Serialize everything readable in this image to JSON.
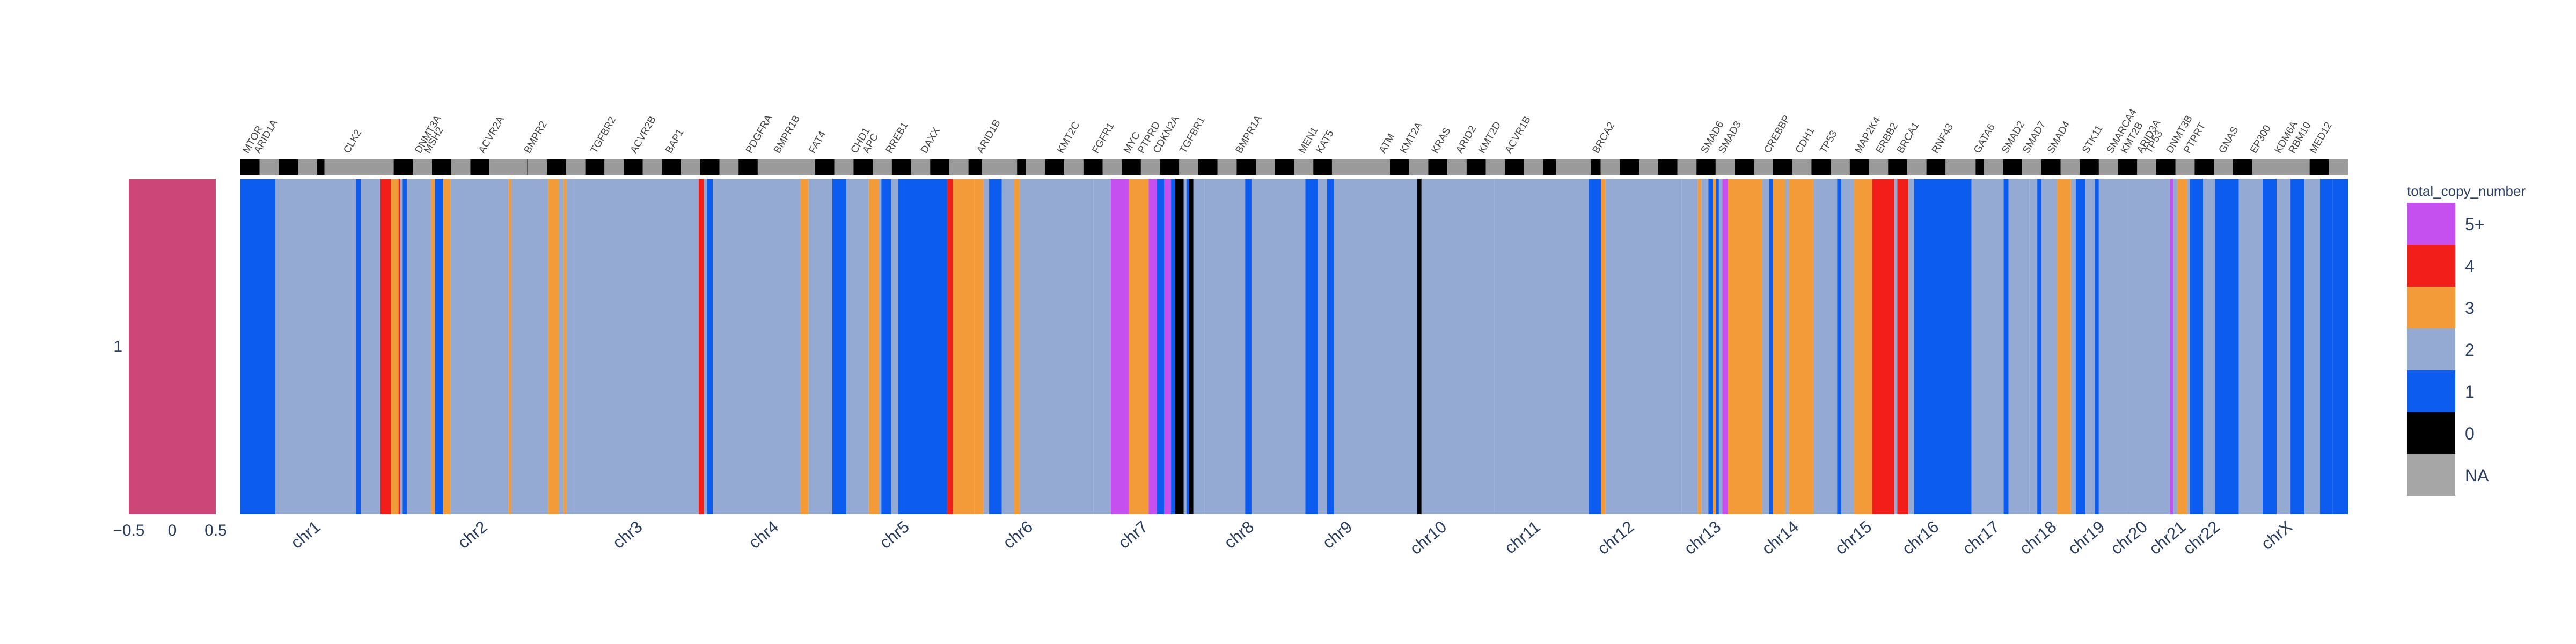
{
  "chart_data": [
    {
      "type": "heatmap",
      "name": "purity-panel",
      "x": [
        0
      ],
      "y": [
        "1"
      ],
      "color": "#cc4778",
      "xlim": [
        -0.5,
        0.5
      ],
      "x_ticks": [
        "−0.5",
        "0",
        "0.5"
      ],
      "y_ticks": [
        "1"
      ]
    },
    {
      "type": "heatmap",
      "name": "copy-number-panel",
      "y_ticks": [
        "1"
      ],
      "chromosomes": [
        {
          "label": "chr1",
          "start": 0,
          "end": 232
        },
        {
          "label": "chr2",
          "start": 232,
          "end": 477
        },
        {
          "label": "chr3",
          "start": 477,
          "end": 675
        },
        {
          "label": "chr4",
          "start": 675,
          "end": 866
        },
        {
          "label": "chr5",
          "start": 866,
          "end": 1049
        },
        {
          "label": "chr6",
          "start": 1049,
          "end": 1219
        },
        {
          "label": "chr7",
          "start": 1219,
          "end": 1378
        },
        {
          "label": "chr8",
          "start": 1378,
          "end": 1522
        },
        {
          "label": "chr9",
          "start": 1522,
          "end": 1659
        },
        {
          "label": "chr10",
          "start": 1659,
          "end": 1792
        },
        {
          "label": "chr11",
          "start": 1792,
          "end": 1927
        },
        {
          "label": "chr12",
          "start": 1927,
          "end": 2060
        },
        {
          "label": "chr13",
          "start": 2060,
          "end": 2175
        },
        {
          "label": "chr14",
          "start": 2175,
          "end": 2282
        },
        {
          "label": "chr15",
          "start": 2282,
          "end": 2384
        },
        {
          "label": "chr16",
          "start": 2384,
          "end": 2474
        },
        {
          "label": "chr17",
          "start": 2474,
          "end": 2557
        },
        {
          "label": "chr18",
          "start": 2557,
          "end": 2637
        },
        {
          "label": "chr19",
          "start": 2637,
          "end": 2695
        },
        {
          "label": "chr20",
          "start": 2695,
          "end": 2759
        },
        {
          "label": "chr21",
          "start": 2759,
          "end": 2805
        },
        {
          "label": "chr22",
          "start": 2805,
          "end": 2856
        },
        {
          "label": "chrX",
          "start": 2856,
          "end": 3012
        }
      ],
      "genes": [
        {
          "label": "MTOR",
          "pos": 11
        },
        {
          "label": "ARID1A",
          "pos": 27
        },
        {
          "label": "CLK2",
          "pos": 155
        },
        {
          "label": "DNMT3A",
          "pos": 257
        },
        {
          "label": "MSH2",
          "pos": 270
        },
        {
          "label": "ACVR2A",
          "pos": 348
        },
        {
          "label": "BMPR2",
          "pos": 413
        },
        {
          "label": "TGFBR2",
          "pos": 508
        },
        {
          "label": "ACVR2B",
          "pos": 565
        },
        {
          "label": "BAP1",
          "pos": 615
        },
        {
          "label": "PDGFRA",
          "pos": 730
        },
        {
          "label": "BMPR1B",
          "pos": 770
        },
        {
          "label": "FAT4",
          "pos": 820
        },
        {
          "label": "CHD1",
          "pos": 880
        },
        {
          "label": "APC",
          "pos": 897
        },
        {
          "label": "RREB1",
          "pos": 930
        },
        {
          "label": "DAXX",
          "pos": 980
        },
        {
          "label": "ARID1B",
          "pos": 1060
        },
        {
          "label": "KMT2C",
          "pos": 1175
        },
        {
          "label": "FGFR1",
          "pos": 1225
        },
        {
          "label": "MYC",
          "pos": 1270
        },
        {
          "label": "PTPRD",
          "pos": 1290
        },
        {
          "label": "CDKN2A",
          "pos": 1312
        },
        {
          "label": "TGFBR1",
          "pos": 1350
        },
        {
          "label": "BMPR1A",
          "pos": 1430
        },
        {
          "label": "MEN1",
          "pos": 1520
        },
        {
          "label": "KAT5",
          "pos": 1545
        },
        {
          "label": "ATM",
          "pos": 1635
        },
        {
          "label": "KMT2A",
          "pos": 1665
        },
        {
          "label": "KRAS",
          "pos": 1710
        },
        {
          "label": "ARID2",
          "pos": 1745
        },
        {
          "label": "KMT2D",
          "pos": 1777
        },
        {
          "label": "ACVR1B",
          "pos": 1815
        },
        {
          "label": "BRCA2",
          "pos": 1940
        },
        {
          "label": "SMAD6",
          "pos": 2095
        },
        {
          "label": "SMAD3",
          "pos": 2120
        },
        {
          "label": "CREBBP",
          "pos": 2185
        },
        {
          "label": "CDH1",
          "pos": 2230
        },
        {
          "label": "TP53",
          "pos": 2265
        },
        {
          "label": "MAP2K4",
          "pos": 2315
        },
        {
          "label": "ERBB2",
          "pos": 2345
        },
        {
          "label": "BRCA1",
          "pos": 2375
        },
        {
          "label": "RNF43",
          "pos": 2425
        },
        {
          "label": "GATA6",
          "pos": 2485
        },
        {
          "label": "SMAD2",
          "pos": 2525
        },
        {
          "label": "SMAD7",
          "pos": 2555
        },
        {
          "label": "SMAD4",
          "pos": 2590
        },
        {
          "label": "STK11",
          "pos": 2640
        },
        {
          "label": "SMARCA4",
          "pos": 2675
        },
        {
          "label": "KMT2B",
          "pos": 2695
        },
        {
          "label": "ARID3A",
          "pos": 2718
        },
        {
          "label": "TP53",
          "pos": 2730
        },
        {
          "label": "DNMT3B",
          "pos": 2760
        },
        {
          "label": "PTPRT",
          "pos": 2785
        },
        {
          "label": "GNAS",
          "pos": 2835
        },
        {
          "label": "EP300",
          "pos": 2880
        },
        {
          "label": "KDM6A",
          "pos": 2915
        },
        {
          "label": "RBM10",
          "pos": 2935
        },
        {
          "label": "MED12",
          "pos": 2965
        }
      ],
      "segments": [
        {
          "start": 0,
          "end": 50,
          "cn": 1
        },
        {
          "start": 50,
          "end": 165,
          "cn": 2
        },
        {
          "start": 165,
          "end": 172,
          "cn": 1
        },
        {
          "start": 172,
          "end": 200,
          "cn": 2
        },
        {
          "start": 200,
          "end": 215,
          "cn": 4
        },
        {
          "start": 215,
          "end": 226,
          "cn": 3
        },
        {
          "start": 226,
          "end": 228,
          "cn": 4
        },
        {
          "start": 228,
          "end": 232,
          "cn": 2
        },
        {
          "start": 232,
          "end": 238,
          "cn": 1
        },
        {
          "start": 238,
          "end": 273,
          "cn": 2
        },
        {
          "start": 273,
          "end": 278,
          "cn": 3
        },
        {
          "start": 278,
          "end": 290,
          "cn": 1
        },
        {
          "start": 290,
          "end": 300,
          "cn": 3
        },
        {
          "start": 300,
          "end": 383,
          "cn": 2
        },
        {
          "start": 383,
          "end": 387,
          "cn": 3
        },
        {
          "start": 387,
          "end": 440,
          "cn": 2
        },
        {
          "start": 440,
          "end": 455,
          "cn": 3
        },
        {
          "start": 455,
          "end": 462,
          "cn": 2
        },
        {
          "start": 462,
          "end": 466,
          "cn": 3
        },
        {
          "start": 466,
          "end": 477,
          "cn": 2
        },
        {
          "start": 477,
          "end": 655,
          "cn": 2
        },
        {
          "start": 655,
          "end": 662,
          "cn": 4
        },
        {
          "start": 662,
          "end": 667,
          "cn": 2
        },
        {
          "start": 667,
          "end": 675,
          "cn": 1
        },
        {
          "start": 675,
          "end": 800,
          "cn": 2
        },
        {
          "start": 800,
          "end": 812,
          "cn": 3
        },
        {
          "start": 812,
          "end": 846,
          "cn": 2
        },
        {
          "start": 846,
          "end": 866,
          "cn": 1
        },
        {
          "start": 866,
          "end": 898,
          "cn": 2
        },
        {
          "start": 898,
          "end": 912,
          "cn": 3
        },
        {
          "start": 912,
          "end": 916,
          "cn": 2
        },
        {
          "start": 916,
          "end": 930,
          "cn": 1
        },
        {
          "start": 930,
          "end": 940,
          "cn": 2
        },
        {
          "start": 940,
          "end": 948,
          "cn": 1
        },
        {
          "start": 948,
          "end": 1010,
          "cn": 1
        },
        {
          "start": 1010,
          "end": 1018,
          "cn": 4
        },
        {
          "start": 1018,
          "end": 1049,
          "cn": 3
        },
        {
          "start": 1049,
          "end": 1062,
          "cn": 3
        },
        {
          "start": 1062,
          "end": 1070,
          "cn": 2
        },
        {
          "start": 1070,
          "end": 1088,
          "cn": 1
        },
        {
          "start": 1088,
          "end": 1106,
          "cn": 2
        },
        {
          "start": 1106,
          "end": 1114,
          "cn": 3
        },
        {
          "start": 1114,
          "end": 1219,
          "cn": 2
        },
        {
          "start": 1219,
          "end": 1244,
          "cn": 2
        },
        {
          "start": 1244,
          "end": 1270,
          "cn": 5
        },
        {
          "start": 1270,
          "end": 1298,
          "cn": 3
        },
        {
          "start": 1298,
          "end": 1310,
          "cn": 5
        },
        {
          "start": 1310,
          "end": 1320,
          "cn": 1
        },
        {
          "start": 1320,
          "end": 1330,
          "cn": 5
        },
        {
          "start": 1330,
          "end": 1336,
          "cn": 1
        },
        {
          "start": 1336,
          "end": 1348,
          "cn": 0
        },
        {
          "start": 1348,
          "end": 1352,
          "cn": 2
        },
        {
          "start": 1352,
          "end": 1356,
          "cn": 1
        },
        {
          "start": 1356,
          "end": 1362,
          "cn": 0
        },
        {
          "start": 1362,
          "end": 1378,
          "cn": 2
        },
        {
          "start": 1378,
          "end": 1436,
          "cn": 2
        },
        {
          "start": 1436,
          "end": 1445,
          "cn": 1
        },
        {
          "start": 1445,
          "end": 1522,
          "cn": 2
        },
        {
          "start": 1522,
          "end": 1540,
          "cn": 1
        },
        {
          "start": 1540,
          "end": 1553,
          "cn": 2
        },
        {
          "start": 1553,
          "end": 1563,
          "cn": 1
        },
        {
          "start": 1563,
          "end": 1659,
          "cn": 2
        },
        {
          "start": 1659,
          "end": 1682,
          "cn": 2
        },
        {
          "start": 1682,
          "end": 1688,
          "cn": 0
        },
        {
          "start": 1688,
          "end": 1792,
          "cn": 2
        },
        {
          "start": 1792,
          "end": 1927,
          "cn": 2
        },
        {
          "start": 1927,
          "end": 1945,
          "cn": 1
        },
        {
          "start": 1945,
          "end": 1951,
          "cn": 3
        },
        {
          "start": 1951,
          "end": 2060,
          "cn": 2
        },
        {
          "start": 2060,
          "end": 2083,
          "cn": 2
        },
        {
          "start": 2083,
          "end": 2088,
          "cn": 3
        },
        {
          "start": 2088,
          "end": 2098,
          "cn": 2
        },
        {
          "start": 2098,
          "end": 2104,
          "cn": 1
        },
        {
          "start": 2104,
          "end": 2109,
          "cn": 3
        },
        {
          "start": 2109,
          "end": 2113,
          "cn": 1
        },
        {
          "start": 2113,
          "end": 2118,
          "cn": 2
        },
        {
          "start": 2118,
          "end": 2126,
          "cn": 5
        },
        {
          "start": 2126,
          "end": 2175,
          "cn": 3
        },
        {
          "start": 2175,
          "end": 2185,
          "cn": 2
        },
        {
          "start": 2185,
          "end": 2190,
          "cn": 1
        },
        {
          "start": 2190,
          "end": 2208,
          "cn": 3
        },
        {
          "start": 2208,
          "end": 2213,
          "cn": 2
        },
        {
          "start": 2213,
          "end": 2248,
          "cn": 3
        },
        {
          "start": 2248,
          "end": 2282,
          "cn": 2
        },
        {
          "start": 2282,
          "end": 2288,
          "cn": 1
        },
        {
          "start": 2288,
          "end": 2306,
          "cn": 2
        },
        {
          "start": 2306,
          "end": 2332,
          "cn": 3
        },
        {
          "start": 2332,
          "end": 2364,
          "cn": 4
        },
        {
          "start": 2364,
          "end": 2368,
          "cn": 2
        },
        {
          "start": 2368,
          "end": 2384,
          "cn": 4
        },
        {
          "start": 2384,
          "end": 2392,
          "cn": 2
        },
        {
          "start": 2392,
          "end": 2474,
          "cn": 1
        },
        {
          "start": 2474,
          "end": 2520,
          "cn": 2
        },
        {
          "start": 2520,
          "end": 2527,
          "cn": 1
        },
        {
          "start": 2527,
          "end": 2557,
          "cn": 2
        },
        {
          "start": 2557,
          "end": 2568,
          "cn": 2
        },
        {
          "start": 2568,
          "end": 2574,
          "cn": 1
        },
        {
          "start": 2574,
          "end": 2596,
          "cn": 2
        },
        {
          "start": 2596,
          "end": 2616,
          "cn": 3
        },
        {
          "start": 2616,
          "end": 2623,
          "cn": 2
        },
        {
          "start": 2623,
          "end": 2637,
          "cn": 1
        },
        {
          "start": 2637,
          "end": 2650,
          "cn": 2
        },
        {
          "start": 2650,
          "end": 2656,
          "cn": 1
        },
        {
          "start": 2656,
          "end": 2695,
          "cn": 2
        },
        {
          "start": 2695,
          "end": 2758,
          "cn": 2
        },
        {
          "start": 2758,
          "end": 2762,
          "cn": 5
        },
        {
          "start": 2762,
          "end": 2768,
          "cn": 2
        },
        {
          "start": 2768,
          "end": 2782,
          "cn": 3
        },
        {
          "start": 2782,
          "end": 2786,
          "cn": 2
        },
        {
          "start": 2786,
          "end": 2805,
          "cn": 1
        },
        {
          "start": 2805,
          "end": 2822,
          "cn": 2
        },
        {
          "start": 2822,
          "end": 2856,
          "cn": 1
        },
        {
          "start": 2856,
          "end": 2890,
          "cn": 2
        },
        {
          "start": 2890,
          "end": 2910,
          "cn": 1
        },
        {
          "start": 2910,
          "end": 2930,
          "cn": 2
        },
        {
          "start": 2930,
          "end": 2950,
          "cn": 1
        },
        {
          "start": 2950,
          "end": 2972,
          "cn": 2
        },
        {
          "start": 2972,
          "end": 2990,
          "cn": 1
        },
        {
          "start": 2990,
          "end": 3012,
          "cn": 1
        }
      ]
    }
  ],
  "legend": {
    "title": "total_copy_number",
    "placement": "right",
    "items": [
      {
        "label": "5+",
        "color": "#c64ff0"
      },
      {
        "label": "4",
        "color": "#f21e1a"
      },
      {
        "label": "3",
        "color": "#f29b38"
      },
      {
        "label": "2",
        "color": "#94aad3"
      },
      {
        "label": "1",
        "color": "#0c5def"
      },
      {
        "label": "0",
        "color": "#000000"
      },
      {
        "label": "NA",
        "color": "#a6a6a6"
      }
    ]
  }
}
